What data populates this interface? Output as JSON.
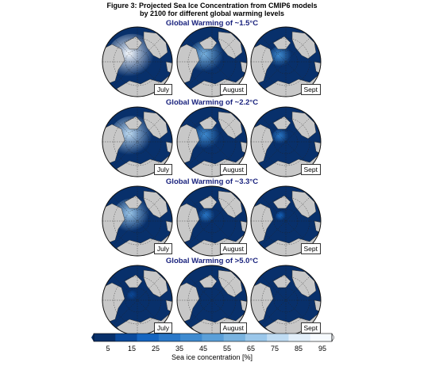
{
  "figure": {
    "title_line1": "Figure 3: Projected Sea Ice Concentration from CMIP6 models",
    "title_line2": "by 2100 for different global warming levels"
  },
  "rows": [
    {
      "title": "Global Warming of ~1.5°C",
      "ice": [
        [
          0.62,
          0.95
        ],
        [
          0.42,
          0.58
        ],
        [
          0.22,
          0.42
        ]
      ]
    },
    {
      "title": "Global Warming of ~2.2°C",
      "ice": [
        [
          0.55,
          0.78
        ],
        [
          0.3,
          0.42
        ],
        [
          0.12,
          0.28
        ]
      ]
    },
    {
      "title": "Global Warming of ~3.3°C",
      "ice": [
        [
          0.45,
          0.65
        ],
        [
          0.12,
          0.28
        ],
        [
          0.02,
          0.15
        ]
      ]
    },
    {
      "title": "Global Warming of >5.0°C",
      "ice": [
        [
          0.02,
          0.12
        ],
        [
          0.0,
          0.08
        ],
        [
          0.0,
          0.05
        ]
      ]
    }
  ],
  "months": [
    "July",
    "August",
    "Sept"
  ],
  "colorbar": {
    "label": "Sea ice concentration [%]",
    "ticks": [
      "5",
      "15",
      "25",
      "35",
      "45",
      "55",
      "65",
      "75",
      "85",
      "95"
    ],
    "colors": [
      "#08306b",
      "#0b4a9c",
      "#1565c0",
      "#2a78c8",
      "#3f8bd0",
      "#5a9fd8",
      "#79b3e0",
      "#9bc7ea",
      "#bfdcf3",
      "#e2effa",
      "#f7fbff"
    ]
  },
  "colors": {
    "land": "#c8c8c8",
    "ocean_low": "#08306b",
    "title_row": "#1a237e"
  }
}
